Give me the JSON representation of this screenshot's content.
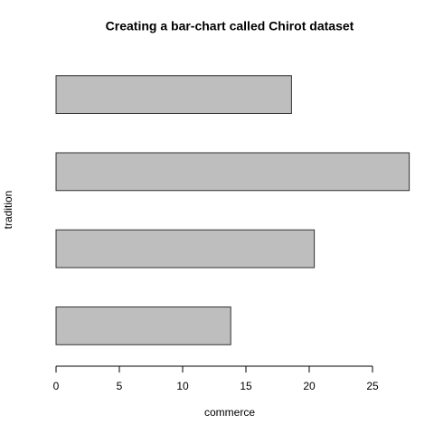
{
  "chart_data": {
    "type": "barh",
    "title": "Creating a bar-chart called Chirot dataset",
    "xlabel": "commerce",
    "ylabel": "tradition",
    "categories": [
      null,
      null,
      null,
      null
    ],
    "values": [
      13.8,
      20.4,
      27.9,
      18.6
    ],
    "color": "#bebebe",
    "xlim": [
      0,
      28
    ],
    "xticks": [
      0,
      5,
      10,
      15,
      20,
      25
    ],
    "grid": false
  }
}
